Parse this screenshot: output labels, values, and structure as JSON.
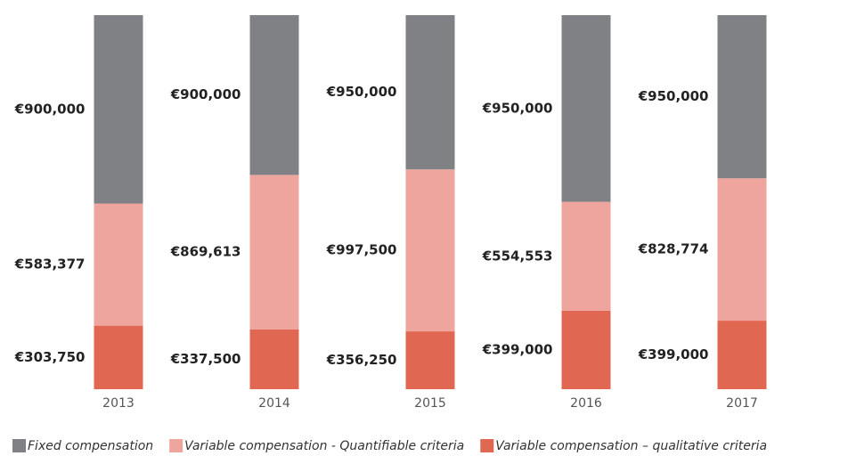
{
  "chart_data": {
    "type": "bar",
    "stacked": "percent",
    "categories": [
      "2013",
      "2014",
      "2015",
      "2016",
      "2017"
    ],
    "series": [
      {
        "name": "Fixed compensation",
        "color": "#808184",
        "values": [
          900000,
          900000,
          950000,
          950000,
          950000
        ],
        "value_labels": [
          "€900,000",
          "€900,000",
          "€950,000",
          "€950,000",
          "€950,000"
        ]
      },
      {
        "name": "Variable compensation - Quantifiable criteria",
        "color": "#eea59e",
        "values": [
          583377,
          869613,
          997500,
          554553,
          828774
        ],
        "value_labels": [
          "€583,377",
          "€869,613",
          "€997,500",
          "€554,553",
          "€828,774"
        ]
      },
      {
        "name": "Variable compensation – qualitative criteria",
        "color": "#e06852",
        "values": [
          303750,
          337500,
          356250,
          399000,
          399000
        ],
        "value_labels": [
          "€303,750",
          "€337,500",
          "€356,250",
          "€399,000",
          "€399,000"
        ]
      }
    ]
  }
}
